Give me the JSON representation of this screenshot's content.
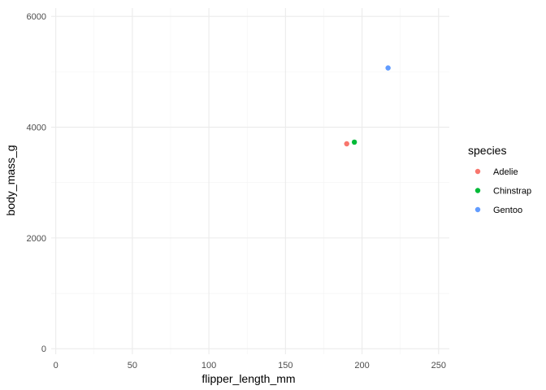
{
  "chart_data": {
    "type": "scatter",
    "xlabel": "flipper_length_mm",
    "ylabel": "body_mass_g",
    "xlim": [
      -3,
      257
    ],
    "ylim": [
      -100,
      6150
    ],
    "x_ticks": [
      0,
      50,
      100,
      150,
      200,
      250
    ],
    "y_ticks": [
      0,
      2000,
      4000,
      6000
    ],
    "grid": true,
    "legend": {
      "title": "species",
      "position": "right"
    },
    "series": [
      {
        "name": "Adelie",
        "color": "#F8766D",
        "points": [
          {
            "x": 190,
            "y": 3700
          }
        ]
      },
      {
        "name": "Chinstrap",
        "color": "#00BA38",
        "points": [
          {
            "x": 195,
            "y": 3730
          }
        ]
      },
      {
        "name": "Gentoo",
        "color": "#619CFF",
        "points": [
          {
            "x": 217,
            "y": 5070
          }
        ]
      }
    ]
  }
}
